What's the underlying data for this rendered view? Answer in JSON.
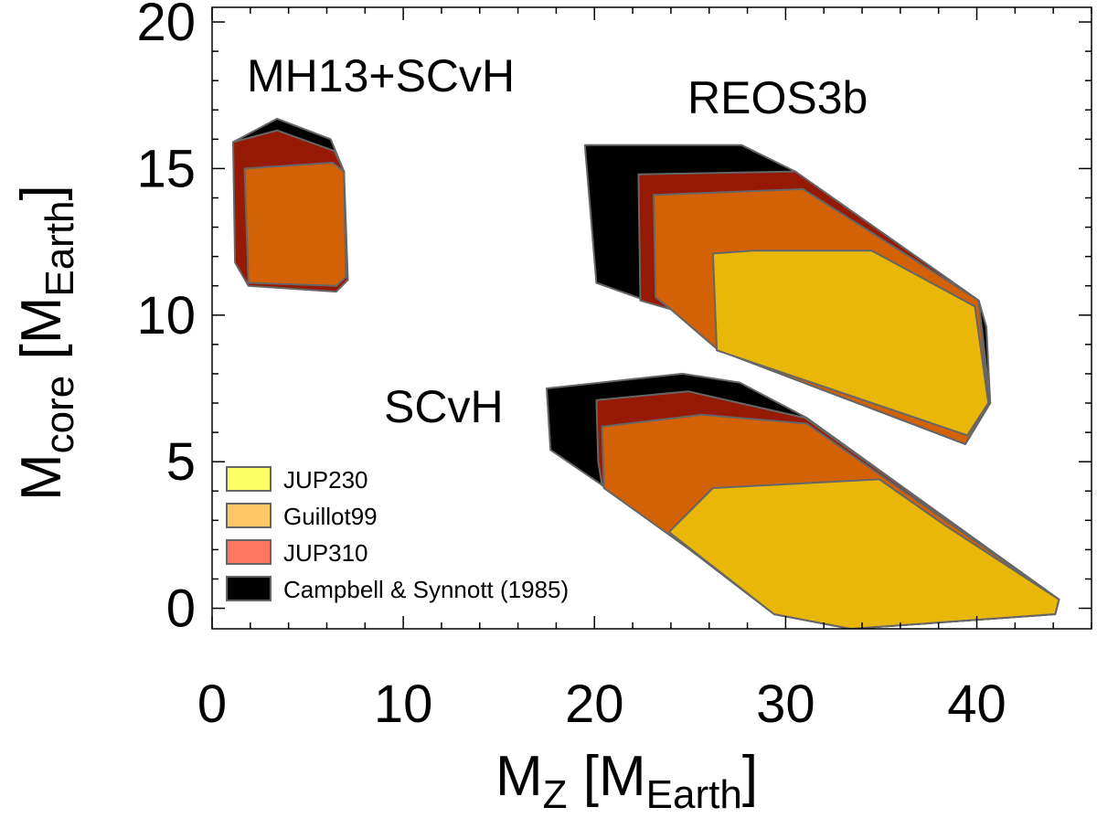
{
  "chart_data": {
    "type": "area",
    "xlabel": {
      "main": "M",
      "sub": "Z",
      "unit_main": " [M",
      "unit_sub": "Earth",
      "close": "]"
    },
    "ylabel": {
      "main": "M",
      "sub": "core",
      "unit_main": " [M",
      "unit_sub": "Earth",
      "close": "]"
    },
    "xlim": [
      0,
      46
    ],
    "ylim": [
      -0.7,
      20.5
    ],
    "x_ticks": [
      0,
      10,
      20,
      30,
      40
    ],
    "y_ticks": [
      0,
      5,
      10,
      15,
      20
    ],
    "x_ticks_labels": [
      "0",
      "10",
      "20",
      "30",
      "40"
    ],
    "y_ticks_labels": [
      "0",
      "5",
      "10",
      "15",
      "20"
    ],
    "colors": {
      "JUP230": "#e9b708",
      "Guillot99": "#d36106",
      "JUP310": "#961903",
      "Campbell": "#000000",
      "outline": "#666666"
    },
    "legend": [
      {
        "label": "JUP230",
        "color": "#ffff66"
      },
      {
        "label": "Guillot99",
        "color": "#ffc766"
      },
      {
        "label": "JUP310",
        "color": "#ff7760"
      },
      {
        "label": "Campbell & Synnott (1985)",
        "color": "#000000"
      }
    ],
    "groups": [
      {
        "name": "MH13+SCvH",
        "regions": [
          {
            "key": "Campbell",
            "points": [
              [
                1.1,
                15.9
              ],
              [
                3.4,
                16.7
              ],
              [
                6.2,
                16.0
              ],
              [
                6.9,
                14.9
              ],
              [
                6.9,
                11.2
              ],
              [
                2.0,
                11.0
              ]
            ]
          },
          {
            "key": "JUP310",
            "points": [
              [
                1.1,
                15.9
              ],
              [
                3.4,
                16.3
              ],
              [
                6.4,
                15.6
              ],
              [
                6.9,
                14.9
              ],
              [
                7.1,
                11.2
              ],
              [
                6.5,
                10.8
              ],
              [
                1.9,
                11.0
              ],
              [
                1.2,
                11.8
              ]
            ]
          },
          {
            "key": "Guillot99",
            "points": [
              [
                1.7,
                15.0
              ],
              [
                6.3,
                15.2
              ],
              [
                6.9,
                14.9
              ],
              [
                7.0,
                11.3
              ],
              [
                6.5,
                11.0
              ],
              [
                1.9,
                11.1
              ]
            ]
          }
        ]
      },
      {
        "name": "REOS3b",
        "regions": [
          {
            "key": "Campbell",
            "points": [
              [
                19.5,
                15.8
              ],
              [
                27.7,
                15.8
              ],
              [
                30.5,
                14.9
              ],
              [
                40.1,
                10.5
              ],
              [
                40.5,
                9.6
              ],
              [
                40.7,
                7.0
              ],
              [
                39.4,
                5.6
              ],
              [
                26.5,
                8.8
              ],
              [
                24.0,
                10.2
              ],
              [
                20.1,
                11.1
              ]
            ]
          },
          {
            "key": "JUP310",
            "points": [
              [
                22.3,
                14.8
              ],
              [
                30.5,
                14.9
              ],
              [
                40.1,
                10.5
              ],
              [
                40.7,
                7.0
              ],
              [
                39.4,
                5.6
              ],
              [
                26.5,
                8.8
              ],
              [
                24.0,
                10.2
              ],
              [
                22.4,
                10.5
              ]
            ]
          },
          {
            "key": "Guillot99",
            "points": [
              [
                23.1,
                14.1
              ],
              [
                30.9,
                14.3
              ],
              [
                40.1,
                10.5
              ],
              [
                40.6,
                7.0
              ],
              [
                39.4,
                5.6
              ],
              [
                26.5,
                8.8
              ],
              [
                24.0,
                10.2
              ],
              [
                23.2,
                10.6
              ]
            ]
          },
          {
            "key": "JUP230",
            "points": [
              [
                26.2,
                12.1
              ],
              [
                28.3,
                12.2
              ],
              [
                34.5,
                12.2
              ],
              [
                39.9,
                10.3
              ],
              [
                40.6,
                7.0
              ],
              [
                39.5,
                5.9
              ],
              [
                26.4,
                8.8
              ]
            ]
          }
        ]
      },
      {
        "name": "SCvH",
        "regions": [
          {
            "key": "Campbell",
            "points": [
              [
                17.5,
                7.5
              ],
              [
                24.6,
                8.0
              ],
              [
                27.6,
                7.7
              ],
              [
                31.1,
                6.5
              ],
              [
                44.3,
                0.3
              ],
              [
                44.1,
                -0.2
              ],
              [
                33.4,
                -0.7
              ],
              [
                29.4,
                -0.2
              ],
              [
                25.0,
                2.0
              ],
              [
                20.4,
                4.2
              ],
              [
                17.7,
                5.4
              ]
            ]
          },
          {
            "key": "JUP310",
            "points": [
              [
                20.1,
                7.1
              ],
              [
                24.9,
                7.4
              ],
              [
                31.0,
                6.5
              ],
              [
                44.3,
                0.3
              ],
              [
                44.1,
                -0.2
              ],
              [
                33.4,
                -0.7
              ],
              [
                29.4,
                -0.2
              ],
              [
                25.0,
                2.0
              ],
              [
                20.4,
                4.2
              ],
              [
                20.2,
                5.0
              ]
            ]
          },
          {
            "key": "Guillot99",
            "points": [
              [
                20.4,
                6.2
              ],
              [
                25.6,
                6.6
              ],
              [
                31.1,
                6.3
              ],
              [
                44.3,
                0.3
              ],
              [
                44.1,
                -0.2
              ],
              [
                33.4,
                -0.7
              ],
              [
                29.4,
                -0.2
              ],
              [
                25.0,
                2.0
              ],
              [
                20.5,
                4.1
              ]
            ]
          },
          {
            "key": "JUP230",
            "points": [
              [
                26.2,
                4.1
              ],
              [
                34.9,
                4.4
              ],
              [
                38.4,
                2.8
              ],
              [
                44.3,
                0.3
              ],
              [
                44.1,
                -0.2
              ],
              [
                33.4,
                -0.7
              ],
              [
                29.4,
                -0.2
              ],
              [
                23.9,
                2.6
              ]
            ]
          }
        ]
      }
    ]
  }
}
